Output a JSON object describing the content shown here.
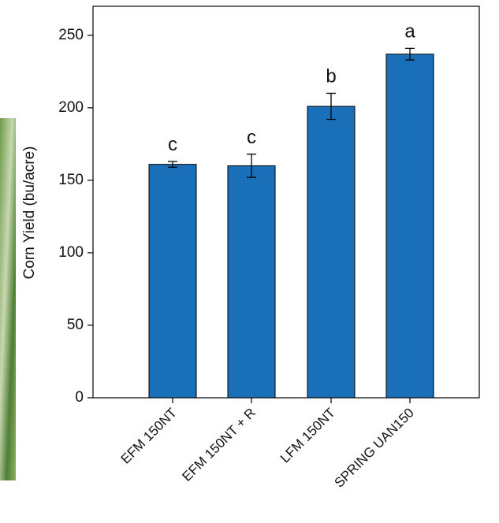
{
  "chart_data": {
    "type": "bar",
    "y_label": "Corn Yield (bu/acre)",
    "categories": [
      "EFM 150NT",
      "EFM 150NT + R",
      "LFM 150NT",
      "SPRING UAN150"
    ],
    "values": [
      161,
      160,
      201,
      237
    ],
    "errors": [
      2,
      8,
      9,
      4
    ],
    "annotations": [
      "c",
      "c",
      "b",
      "a"
    ],
    "color": "#1a70b8",
    "ylim": [
      0,
      270
    ],
    "yticks": [
      0,
      50,
      100,
      150,
      200,
      250
    ],
    "grid": false
  }
}
